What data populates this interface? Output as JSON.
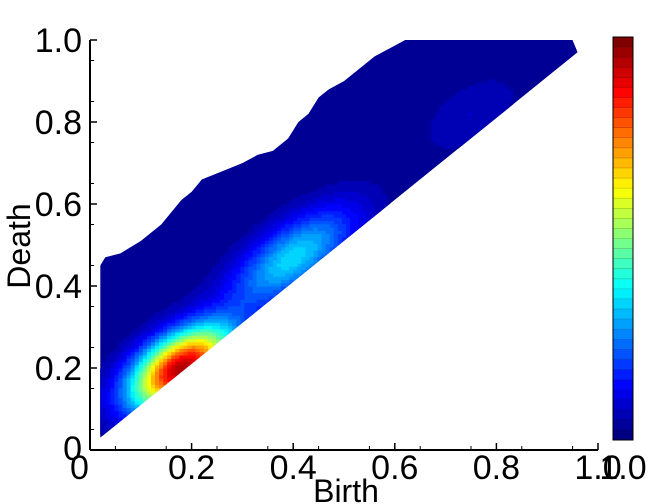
{
  "chart_data": {
    "type": "heatmap",
    "xlabel": "Birth",
    "ylabel": "Death",
    "xlim": [
      0,
      1.0
    ],
    "ylim": [
      0,
      1.0
    ],
    "x_ticks": [
      0,
      0.2,
      0.4,
      0.6,
      0.8,
      1.0
    ],
    "x_tick_labels": [
      "0",
      "0.2",
      "0.4",
      "0.6",
      "0.8",
      "1.0"
    ],
    "y_ticks": [
      0,
      0.2,
      0.4,
      0.6,
      0.8,
      1.0
    ],
    "y_tick_labels": [
      "0",
      "0.2",
      "0.4",
      "0.6",
      "0.8",
      "1.0"
    ],
    "colorbar": {
      "colormap": "jet",
      "tick_labels": [
        "0",
        "1.0"
      ],
      "levels": 40
    },
    "region_upper_boundary": [
      [
        0.02,
        0.45
      ],
      [
        0.03,
        0.47
      ],
      [
        0.06,
        0.48
      ],
      [
        0.1,
        0.51
      ],
      [
        0.14,
        0.55
      ],
      [
        0.18,
        0.61
      ],
      [
        0.2,
        0.63
      ],
      [
        0.22,
        0.66
      ],
      [
        0.26,
        0.68
      ],
      [
        0.3,
        0.7
      ],
      [
        0.33,
        0.72
      ],
      [
        0.36,
        0.73
      ],
      [
        0.39,
        0.76
      ],
      [
        0.41,
        0.8
      ],
      [
        0.43,
        0.82
      ],
      [
        0.45,
        0.86
      ],
      [
        0.47,
        0.88
      ],
      [
        0.5,
        0.9
      ],
      [
        0.53,
        0.93
      ],
      [
        0.56,
        0.96
      ],
      [
        0.59,
        0.98
      ],
      [
        0.62,
        1.0
      ],
      [
        0.95,
        1.0
      ]
    ],
    "hotspots": [
      {
        "birth": 0.18,
        "death": 0.2,
        "intensity": 1.0
      },
      {
        "birth": 0.4,
        "death": 0.47,
        "intensity": 0.35
      },
      {
        "birth": 0.75,
        "death": 0.82,
        "intensity": 0.06
      }
    ]
  },
  "colors": {
    "low": "#00008f",
    "mid_low": "#0000ff",
    "mid": "#00ffff",
    "mid_high": "#ffff00",
    "high": "#ff0000",
    "max": "#800000"
  }
}
